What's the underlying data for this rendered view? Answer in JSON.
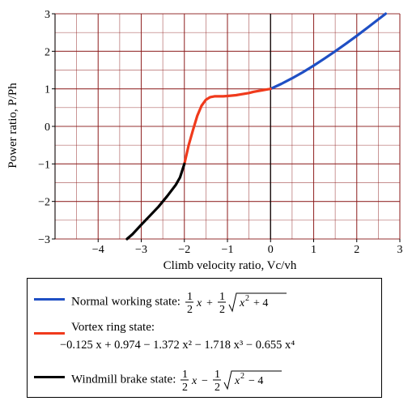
{
  "colors": {
    "normal": "#1f4fc4",
    "vortex": "#f03a1c",
    "windmill": "#000000",
    "grid": "#8b1a1a"
  },
  "chart_data": {
    "type": "line",
    "xlabel": "Climb velocity ratio, Vc/vh",
    "ylabel": "Power ratio, P/Ph",
    "xlim": [
      -5,
      3
    ],
    "ylim": [
      -3,
      3
    ],
    "xticks": [
      -4,
      -3,
      -2,
      -1,
      0,
      1,
      2,
      3
    ],
    "yticks": [
      -3,
      -2,
      -1,
      0,
      1,
      2,
      3
    ],
    "grid": true,
    "legend_position": "bottom",
    "series": [
      {
        "name": "Normal working state",
        "formula": "½x + ½√(x² + 4)",
        "x": [
          0,
          0.25,
          0.5,
          0.75,
          1.0,
          1.25,
          1.5,
          1.75,
          2.0,
          2.25,
          2.5,
          2.67
        ],
        "y": [
          1.0,
          1.133,
          1.281,
          1.443,
          1.618,
          1.806,
          2.0,
          2.204,
          2.414,
          2.631,
          2.851,
          3.0
        ]
      },
      {
        "name": "Vortex ring state",
        "formula": "−0.125x + 0.974 − 1.372x² − 1.718x³ − 0.655x⁴",
        "x": [
          -2.0,
          -1.9,
          -1.8,
          -1.7,
          -1.6,
          -1.5,
          -1.4,
          -1.3,
          -1.2,
          -1.1,
          -1.0,
          -0.9,
          -0.8,
          -0.7,
          -0.6,
          -0.5,
          -0.4,
          -0.3,
          -0.2,
          -0.1,
          0.0
        ],
        "y": [
          -1.0,
          -0.5,
          -0.1,
          0.28,
          0.55,
          0.71,
          0.78,
          0.8,
          0.8,
          0.8,
          0.81,
          0.82,
          0.83,
          0.85,
          0.87,
          0.89,
          0.92,
          0.94,
          0.96,
          0.98,
          1.0
        ]
      },
      {
        "name": "Windmill brake state",
        "formula": "½x − ½√(x² − 4)",
        "x": [
          -3.33,
          -3.2,
          -3.0,
          -2.8,
          -2.6,
          -2.4,
          -2.2,
          -2.1,
          -2.0
        ],
        "y": [
          -3.0,
          -2.87,
          -2.62,
          -2.38,
          -2.14,
          -1.86,
          -1.56,
          -1.36,
          -1.0
        ]
      }
    ]
  },
  "legend": {
    "normal_label": "Normal working state:",
    "vortex_label": "Vortex ring state:",
    "windmill_label": "Windmill brake state:",
    "vortex_formula": "−0.125 x + 0.974 − 1.372 x² − 1.718 x³ − 0.655 x⁴"
  }
}
